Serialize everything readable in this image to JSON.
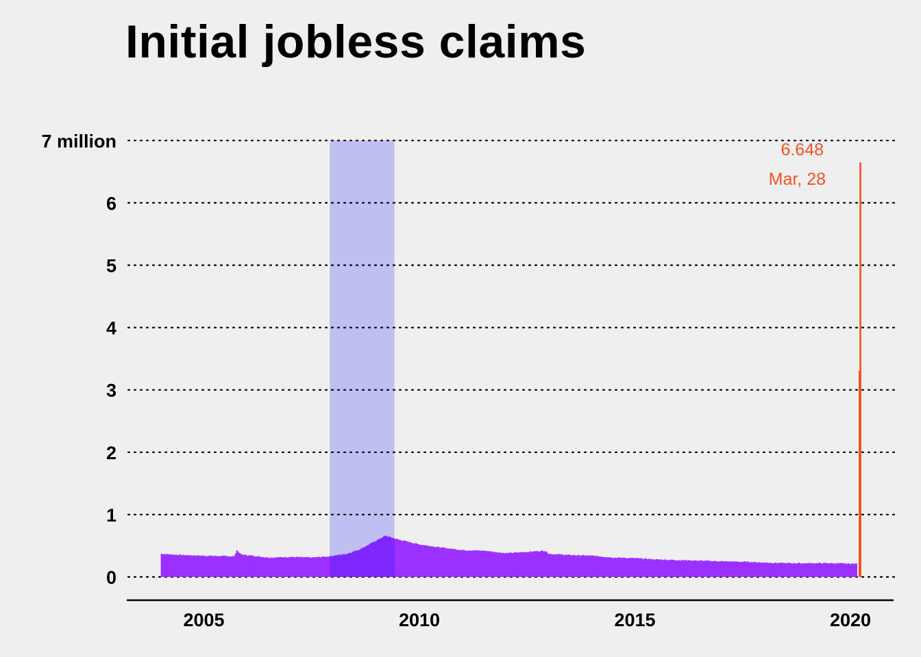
{
  "chart_data": {
    "type": "bar",
    "title": "Initial jobless claims",
    "xlabel": "",
    "ylabel": "",
    "x_range": [
      2003.6,
      2021.0
    ],
    "ylim": [
      0,
      7
    ],
    "y_ticks": [
      {
        "value": 0,
        "label": "0"
      },
      {
        "value": 1,
        "label": "1"
      },
      {
        "value": 2,
        "label": "2"
      },
      {
        "value": 3,
        "label": "3"
      },
      {
        "value": 4,
        "label": "4"
      },
      {
        "value": 5,
        "label": "5"
      },
      {
        "value": 6,
        "label": "6"
      },
      {
        "value": 7,
        "label": "7 million"
      }
    ],
    "x_ticks": [
      {
        "value": 2005,
        "label": "2005"
      },
      {
        "value": 2010,
        "label": "2010"
      },
      {
        "value": 2015,
        "label": "2015"
      },
      {
        "value": 2020,
        "label": "2020"
      }
    ],
    "grid": "horizontal dotted",
    "recession_shading": {
      "start": 2007.92,
      "end": 2009.42,
      "color": "#bfbff2"
    },
    "colors": {
      "bars": "#9b30ff",
      "bars_in_recession": "#7f27ff",
      "highlight": "#f4511e",
      "axis": "#000000"
    },
    "series": [
      {
        "values_note": "weekly initial claims in millions, anchor points interpolated weekly",
        "anchors": [
          [
            2004.0,
            0.37
          ],
          [
            2004.5,
            0.35
          ],
          [
            2005.0,
            0.34
          ],
          [
            2005.7,
            0.33
          ],
          [
            2005.75,
            0.43
          ],
          [
            2005.85,
            0.36
          ],
          [
            2006.5,
            0.31
          ],
          [
            2007.0,
            0.32
          ],
          [
            2007.5,
            0.31
          ],
          [
            2007.9,
            0.33
          ],
          [
            2008.3,
            0.37
          ],
          [
            2008.6,
            0.44
          ],
          [
            2008.9,
            0.55
          ],
          [
            2009.2,
            0.66
          ],
          [
            2009.5,
            0.6
          ],
          [
            2010.0,
            0.52
          ],
          [
            2010.5,
            0.47
          ],
          [
            2011.0,
            0.43
          ],
          [
            2011.5,
            0.42
          ],
          [
            2012.0,
            0.38
          ],
          [
            2012.9,
            0.42
          ],
          [
            2013.0,
            0.37
          ],
          [
            2013.5,
            0.35
          ],
          [
            2014.0,
            0.34
          ],
          [
            2014.5,
            0.31
          ],
          [
            2015.0,
            0.3
          ],
          [
            2015.5,
            0.28
          ],
          [
            2016.0,
            0.27
          ],
          [
            2016.5,
            0.26
          ],
          [
            2017.0,
            0.25
          ],
          [
            2017.7,
            0.24
          ],
          [
            2018.0,
            0.23
          ],
          [
            2018.5,
            0.22
          ],
          [
            2019.0,
            0.22
          ],
          [
            2019.5,
            0.22
          ],
          [
            2020.15,
            0.21
          ]
        ]
      }
    ],
    "highlight_points": [
      {
        "x": 2020.21,
        "value": 3.307
      },
      {
        "x": 2020.23,
        "value": 6.648
      }
    ],
    "annotation": {
      "value_label": "6.648",
      "date_label": "Mar, 28"
    }
  }
}
